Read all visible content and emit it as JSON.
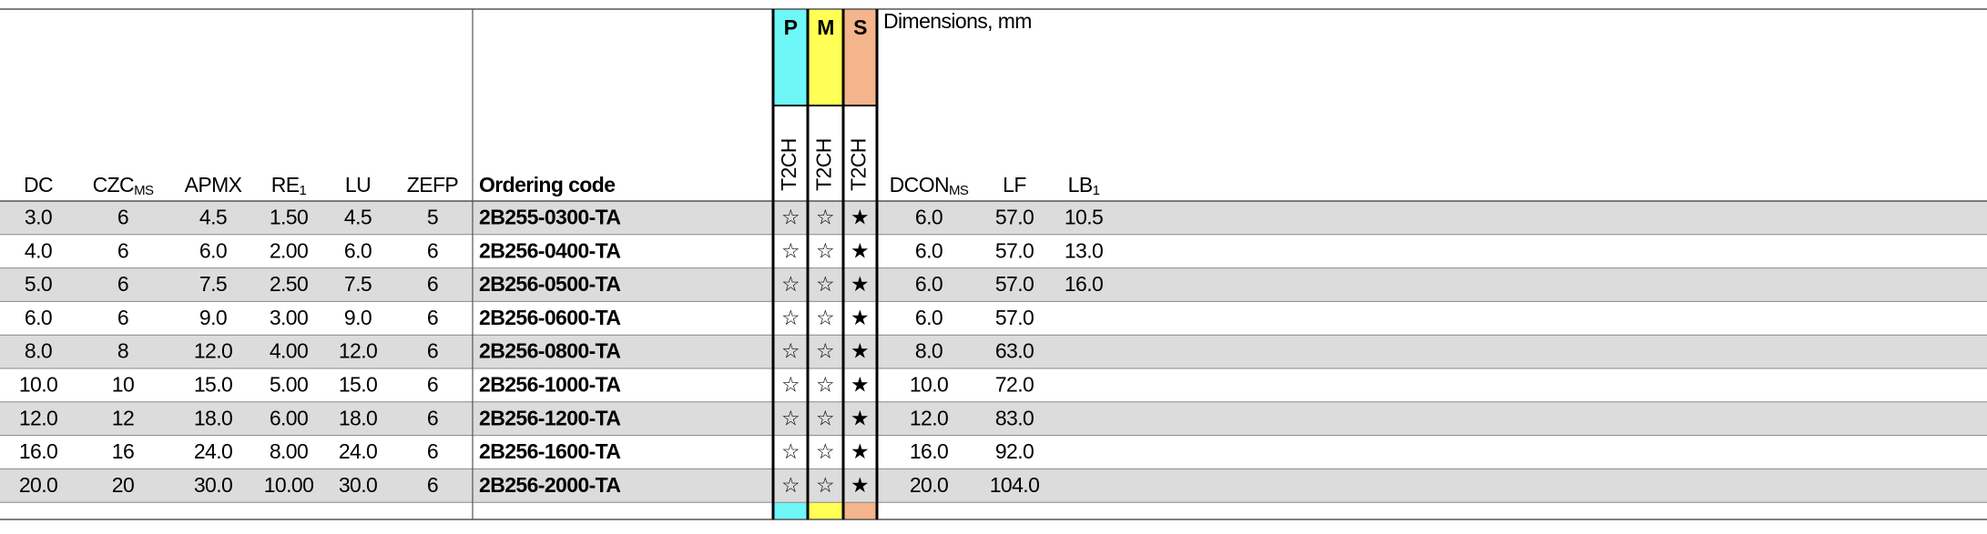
{
  "header": {
    "columns": [
      {
        "label": "DC"
      },
      {
        "label": "CZC",
        "sub": "MS"
      },
      {
        "label": "APMX"
      },
      {
        "label": "RE",
        "sub": "1"
      },
      {
        "label": "LU"
      },
      {
        "label": "ZEFP"
      },
      {
        "label": "Ordering code"
      },
      {
        "label": "DCON",
        "sub": "MS"
      },
      {
        "label": "LF"
      },
      {
        "label": "LB",
        "sub": "1"
      }
    ],
    "materials": [
      {
        "group": "P",
        "grade": "T2CH"
      },
      {
        "group": "M",
        "grade": "T2CH"
      },
      {
        "group": "S",
        "grade": "T2CH"
      }
    ],
    "dimensions_note": "Dimensions, mm"
  },
  "table": {
    "rows": [
      [
        "3.0",
        "6",
        "4.5",
        "1.50",
        "4.5",
        "5",
        "2B255-0300-TA",
        "☆",
        "☆",
        "★",
        "6.0",
        "57.0",
        "10.5"
      ],
      [
        "4.0",
        "6",
        "6.0",
        "2.00",
        "6.0",
        "6",
        "2B256-0400-TA",
        "☆",
        "☆",
        "★",
        "6.0",
        "57.0",
        "13.0"
      ],
      [
        "5.0",
        "6",
        "7.5",
        "2.50",
        "7.5",
        "6",
        "2B256-0500-TA",
        "☆",
        "☆",
        "★",
        "6.0",
        "57.0",
        "16.0"
      ],
      [
        "6.0",
        "6",
        "9.0",
        "3.00",
        "9.0",
        "6",
        "2B256-0600-TA",
        "☆",
        "☆",
        "★",
        "6.0",
        "57.0"
      ],
      [
        "8.0",
        "8",
        "12.0",
        "4.00",
        "12.0",
        "6",
        "2B256-0800-TA",
        "☆",
        "☆",
        "★",
        "8.0",
        "63.0"
      ],
      [
        "10.0",
        "10",
        "15.0",
        "5.00",
        "15.0",
        "6",
        "2B256-1000-TA",
        "☆",
        "☆",
        "★",
        "10.0",
        "72.0"
      ],
      [
        "12.0",
        "12",
        "18.0",
        "6.00",
        "18.0",
        "6",
        "2B256-1200-TA",
        "☆",
        "☆",
        "★",
        "12.0",
        "83.0"
      ],
      [
        "16.0",
        "16",
        "24.0",
        "8.00",
        "24.0",
        "6",
        "2B256-1600-TA",
        "☆",
        "☆",
        "★",
        "16.0",
        "92.0"
      ],
      [
        "20.0",
        "20",
        "30.0",
        "10.00",
        "30.0",
        "6",
        "2B256-2000-TA",
        "☆",
        "☆",
        "★",
        "20.0",
        "104.0"
      ]
    ]
  }
}
